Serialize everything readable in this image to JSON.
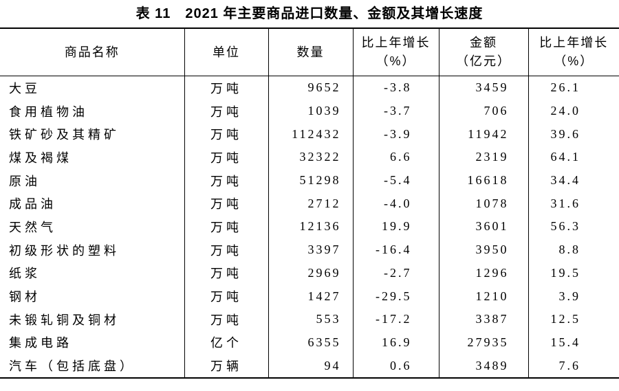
{
  "page": {
    "background": "#ffffff",
    "text_color": "#000000",
    "line_color": "#000000"
  },
  "title": "表 11　2021 年主要商品进口数量、金额及其增长速度",
  "table": {
    "columns": [
      {
        "line1": "商品名称",
        "line2": ""
      },
      {
        "line1": "单位",
        "line2": ""
      },
      {
        "line1": "数量",
        "line2": ""
      },
      {
        "line1": "比上年增长",
        "line2": "（%）"
      },
      {
        "line1": "金额",
        "line2": "（亿元）"
      },
      {
        "line1": "比上年增长",
        "line2": "（%）"
      }
    ],
    "rows": [
      {
        "name": "大豆",
        "unit": "万吨",
        "quantity": "9652",
        "quantity_growth": "-3.8",
        "amount": "3459",
        "amount_growth": "26.1"
      },
      {
        "name": "食用植物油",
        "unit": "万吨",
        "quantity": "1039",
        "quantity_growth": "-3.7",
        "amount": "706",
        "amount_growth": "24.0"
      },
      {
        "name": "铁矿砂及其精矿",
        "unit": "万吨",
        "quantity": "112432",
        "quantity_growth": "-3.9",
        "amount": "11942",
        "amount_growth": "39.6"
      },
      {
        "name": "煤及褐煤",
        "unit": "万吨",
        "quantity": "32322",
        "quantity_growth": "6.6",
        "amount": "2319",
        "amount_growth": "64.1"
      },
      {
        "name": "原油",
        "unit": "万吨",
        "quantity": "51298",
        "quantity_growth": "-5.4",
        "amount": "16618",
        "amount_growth": "34.4"
      },
      {
        "name": "成品油",
        "unit": "万吨",
        "quantity": "2712",
        "quantity_growth": "-4.0",
        "amount": "1078",
        "amount_growth": "31.6"
      },
      {
        "name": "天然气",
        "unit": "万吨",
        "quantity": "12136",
        "quantity_growth": "19.9",
        "amount": "3601",
        "amount_growth": "56.3"
      },
      {
        "name": "初级形状的塑料",
        "unit": "万吨",
        "quantity": "3397",
        "quantity_growth": "-16.4",
        "amount": "3950",
        "amount_growth": "8.8"
      },
      {
        "name": "纸浆",
        "unit": "万吨",
        "quantity": "2969",
        "quantity_growth": "-2.7",
        "amount": "1296",
        "amount_growth": "19.5"
      },
      {
        "name": "钢材",
        "unit": "万吨",
        "quantity": "1427",
        "quantity_growth": "-29.5",
        "amount": "1210",
        "amount_growth": "3.9"
      },
      {
        "name": "未锻轧铜及铜材",
        "unit": "万吨",
        "quantity": "553",
        "quantity_growth": "-17.2",
        "amount": "3387",
        "amount_growth": "12.5"
      },
      {
        "name": "集成电路",
        "unit": "亿个",
        "quantity": "6355",
        "quantity_growth": "16.9",
        "amount": "27935",
        "amount_growth": "15.4"
      },
      {
        "name": "汽车（包括底盘）",
        "unit": "万辆",
        "quantity": "94",
        "quantity_growth": "0.6",
        "amount": "3489",
        "amount_growth": "7.6"
      }
    ]
  }
}
